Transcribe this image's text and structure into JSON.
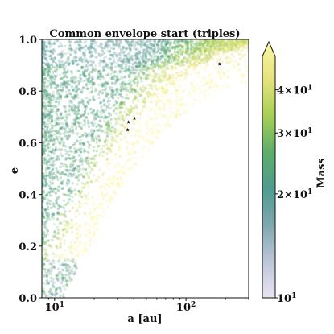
{
  "chart_data": {
    "type": "scatter",
    "title": "Common envelope start (triples)",
    "xlabel": "a [au]",
    "ylabel": "e",
    "x_scale": "log",
    "xlim": [
      8,
      300
    ],
    "ylim": [
      0.0,
      1.0
    ],
    "x_ticks": [
      {
        "value": 10,
        "label": "10^1"
      },
      {
        "value": 100,
        "label": "10^2"
      }
    ],
    "y_ticks": [
      {
        "value": 0.0,
        "label": "0.0"
      },
      {
        "value": 0.2,
        "label": "0.2"
      },
      {
        "value": 0.4,
        "label": "0.4"
      },
      {
        "value": 0.6,
        "label": "0.6"
      },
      {
        "value": 0.8,
        "label": "0.8"
      },
      {
        "value": 1.0,
        "label": "1.0"
      }
    ],
    "colorbar": {
      "label": "Mass",
      "scale": "log",
      "range": [
        10,
        50
      ],
      "extend": "max",
      "colormap": [
        "#e8e4f2",
        "#bcc6d9",
        "#7fa7b0",
        "#4f9b8e",
        "#5fae6a",
        "#a9cf57",
        "#e6e37f",
        "#fbf5a2"
      ],
      "ticks": [
        {
          "value": 10,
          "label": "10^1"
        },
        {
          "value": 20,
          "label": "2×10^1"
        },
        {
          "value": 30,
          "label": "3×10^1"
        },
        {
          "value": 40,
          "label": "4×10^1"
        }
      ]
    },
    "highlighted_points": [
      {
        "a": 36.5,
        "e": 0.68
      },
      {
        "a": 40.5,
        "e": 0.695
      },
      {
        "a": 36.0,
        "e": 0.65
      },
      {
        "a": 180.0,
        "e": 0.905
      }
    ],
    "point_cloud": {
      "description_a_range": [
        8,
        300
      ],
      "edge_e_at_a": [
        [
          8.5,
          0.0
        ],
        [
          10,
          0.08
        ],
        [
          14,
          0.22
        ],
        [
          20,
          0.38
        ],
        [
          30,
          0.55
        ],
        [
          50,
          0.71
        ],
        [
          80,
          0.82
        ],
        [
          150,
          0.92
        ],
        [
          300,
          0.98
        ]
      ]
    }
  }
}
